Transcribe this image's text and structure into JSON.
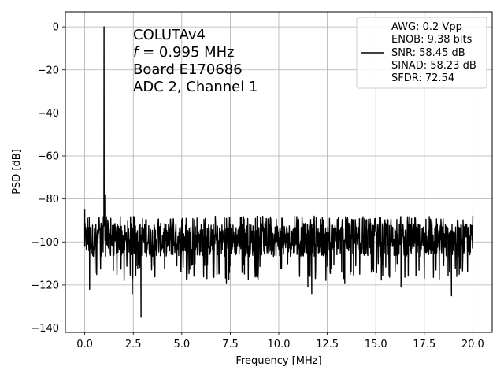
{
  "chart_data": {
    "type": "line",
    "xlabel": "Frequency [MHz]",
    "ylabel": "PSD [dB]",
    "xlim": [
      -1.0,
      21.0
    ],
    "ylim": [
      -142,
      7
    ],
    "xticks": [
      0.0,
      2.5,
      5.0,
      7.5,
      10.0,
      12.5,
      15.0,
      17.5,
      20.0
    ],
    "xtick_labels": [
      "0.0",
      "2.5",
      "5.0",
      "7.5",
      "10.0",
      "12.5",
      "15.0",
      "17.5",
      "20.0"
    ],
    "yticks": [
      0,
      -20,
      -40,
      -60,
      -80,
      -100,
      -120,
      -140
    ],
    "ytick_labels": [
      "0",
      "−20",
      "−40",
      "−60",
      "−80",
      "−100",
      "−120",
      "−140"
    ],
    "grid": true,
    "legend_position": "top-right",
    "annotation": {
      "line1": "COLUTAv4",
      "line2_var": "f",
      "line2_rest": " = 0.995 MHz",
      "line3": "Board E170686",
      "line4": "ADC 2, Channel 1"
    },
    "series": [
      {
        "legend_lines": [
          "AWG: 0.2 Vpp",
          "ENOB: 9.38 bits",
          "SNR: 58.45 dB",
          "SINAD: 58.23 dB",
          "SFDR: 72.54"
        ],
        "color": "#000000",
        "peak": {
          "x": 0.995,
          "y": 0
        },
        "noise_floor_range": [
          -110,
          -88
        ],
        "notable_points": [
          {
            "x": 0.0,
            "y": -85
          },
          {
            "x": 0.995,
            "y": 0
          },
          {
            "x": 1.03,
            "y": -78
          },
          {
            "x": 0.25,
            "y": -122
          },
          {
            "x": 2.45,
            "y": -124
          },
          {
            "x": 2.9,
            "y": -135
          },
          {
            "x": 7.3,
            "y": -119
          },
          {
            "x": 11.5,
            "y": -121
          },
          {
            "x": 11.7,
            "y": -124
          },
          {
            "x": 13.4,
            "y": -119
          },
          {
            "x": 16.3,
            "y": -121
          },
          {
            "x": 18.9,
            "y": -125
          },
          {
            "x": 20.0,
            "y": -88
          }
        ]
      }
    ]
  }
}
